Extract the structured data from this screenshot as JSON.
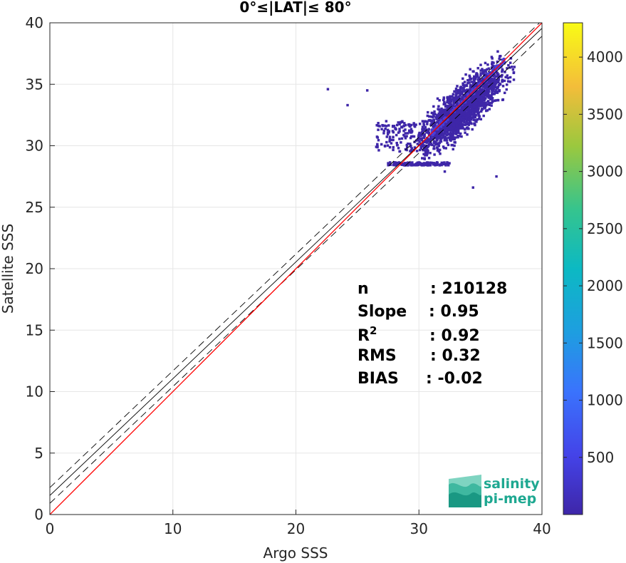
{
  "chart_data": {
    "type": "heatmap",
    "title": "0°≤|LAT|≤ 80°",
    "xlabel": "Argo SSS",
    "ylabel": "Satellite SSS",
    "xlim": [
      0,
      40
    ],
    "ylim": [
      0,
      40
    ],
    "xticks": [
      0,
      10,
      20,
      30,
      40
    ],
    "yticks": [
      0,
      5,
      10,
      15,
      20,
      25,
      30,
      35,
      40
    ],
    "grid": true,
    "colorbar": {
      "ticks": [
        500,
        1000,
        1500,
        2000,
        2500,
        3000,
        3500,
        4000
      ],
      "range": [
        0,
        4300
      ],
      "colormap": "parula"
    },
    "stats": [
      {
        "label": "n",
        "value": ": 210128"
      },
      {
        "label": "Slope",
        "value": ": 0.95"
      },
      {
        "label": "R",
        "sup": "2",
        "value": ": 0.92"
      },
      {
        "label": "RMS",
        "value": ": 0.32"
      },
      {
        "label": "BIAS",
        "value": ": -0.02"
      }
    ],
    "lines": {
      "identity": {
        "slope": 1,
        "intercept": 0,
        "color": "#ff0000"
      },
      "fit": {
        "slope": 0.95,
        "intercept": 1.55,
        "color": "#000000"
      },
      "fit_band_offset": 0.64
    },
    "cloud": {
      "center": [
        33.5,
        33.0
      ],
      "x_range": [
        25,
        38
      ],
      "y_range": [
        26.5,
        38
      ],
      "color": "#3e26a8"
    },
    "logo": {
      "line1": "salinity",
      "line2": "pi-mep",
      "color": "#1ea891"
    }
  }
}
